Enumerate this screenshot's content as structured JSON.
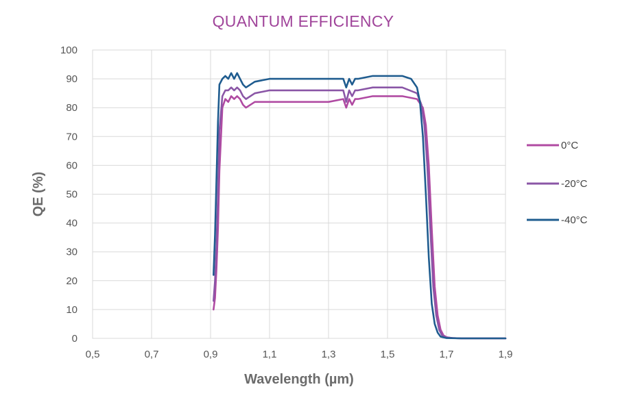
{
  "chart_data": {
    "type": "line",
    "title": "QUANTUM EFFICIENCY",
    "xlabel": "Wavelength (µm)",
    "ylabel": "QE (%)",
    "xlim": [
      0.5,
      1.9
    ],
    "ylim": [
      0,
      100
    ],
    "xticks": [
      "0,5",
      "0,7",
      "0,9",
      "1,1",
      "1,3",
      "1,5",
      "1,7",
      "1,9"
    ],
    "yticks": [
      "0",
      "10",
      "20",
      "30",
      "40",
      "50",
      "60",
      "70",
      "80",
      "90",
      "100"
    ],
    "grid": true,
    "legend_position": "right",
    "series": [
      {
        "name": "0°C",
        "color": "#b04aa2",
        "x": [
          0.91,
          0.915,
          0.92,
          0.925,
          0.93,
          0.94,
          0.95,
          0.96,
          0.97,
          0.98,
          0.99,
          1.0,
          1.01,
          1.02,
          1.05,
          1.1,
          1.2,
          1.3,
          1.35,
          1.36,
          1.37,
          1.38,
          1.39,
          1.4,
          1.45,
          1.5,
          1.55,
          1.6,
          1.62,
          1.63,
          1.64,
          1.65,
          1.66,
          1.67,
          1.68,
          1.69,
          1.7,
          1.72,
          1.75,
          1.8,
          1.9
        ],
        "y": [
          10,
          14,
          24,
          38,
          58,
          80,
          83,
          82,
          84,
          83,
          84,
          83,
          81,
          80,
          82,
          82,
          82,
          82,
          83,
          80,
          83,
          81,
          83,
          83,
          84,
          84,
          84,
          83,
          80,
          74,
          60,
          38,
          18,
          8,
          3,
          1,
          0.4,
          0.1,
          0,
          0,
          0
        ]
      },
      {
        "name": "-20°C",
        "color": "#8a56a6",
        "x": [
          0.91,
          0.915,
          0.92,
          0.925,
          0.93,
          0.94,
          0.95,
          0.96,
          0.97,
          0.98,
          0.99,
          1.0,
          1.01,
          1.02,
          1.05,
          1.1,
          1.2,
          1.3,
          1.35,
          1.36,
          1.37,
          1.38,
          1.39,
          1.4,
          1.45,
          1.5,
          1.55,
          1.6,
          1.615,
          1.625,
          1.635,
          1.645,
          1.655,
          1.665,
          1.675,
          1.685,
          1.7,
          1.72,
          1.75,
          1.8,
          1.9
        ],
        "y": [
          13,
          20,
          32,
          50,
          72,
          84,
          86,
          86,
          87,
          86,
          87,
          86,
          84,
          83,
          85,
          86,
          86,
          86,
          86,
          82,
          86,
          84,
          86,
          86,
          87,
          87,
          87,
          85,
          81,
          74,
          60,
          38,
          18,
          8,
          3,
          1,
          0.3,
          0.1,
          0,
          0,
          0
        ]
      },
      {
        "name": "-40°C",
        "color": "#1f5c8f",
        "x": [
          0.91,
          0.915,
          0.92,
          0.925,
          0.93,
          0.94,
          0.95,
          0.96,
          0.97,
          0.98,
          0.99,
          1.0,
          1.01,
          1.02,
          1.05,
          1.1,
          1.2,
          1.3,
          1.35,
          1.36,
          1.37,
          1.38,
          1.39,
          1.4,
          1.45,
          1.5,
          1.55,
          1.58,
          1.6,
          1.61,
          1.62,
          1.63,
          1.64,
          1.65,
          1.66,
          1.67,
          1.68,
          1.7,
          1.75,
          1.8,
          1.9
        ],
        "y": [
          22,
          36,
          55,
          75,
          88,
          90,
          91,
          90,
          92,
          90,
          92,
          90,
          88,
          87,
          89,
          90,
          90,
          90,
          90,
          87,
          90,
          88,
          90,
          90,
          91,
          91,
          91,
          90,
          87,
          82,
          70,
          50,
          28,
          12,
          5,
          2,
          0.6,
          0.1,
          0,
          0,
          0
        ]
      }
    ]
  }
}
